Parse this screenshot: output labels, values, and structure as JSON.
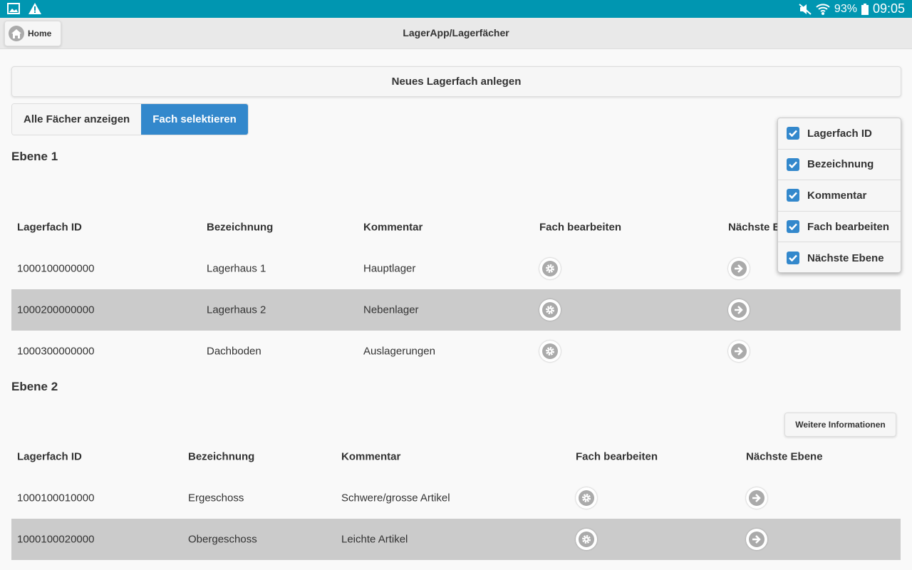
{
  "status_bar": {
    "battery": "93%",
    "time": "09:05",
    "icons": [
      "image-icon",
      "warning-icon",
      "mute-icon",
      "wifi-icon",
      "battery-icon"
    ]
  },
  "header": {
    "home_label": "Home",
    "title": "LagerApp/Lagerfächer"
  },
  "new_button": "Neues Lagerfach anlegen",
  "segments": [
    {
      "label": "Alle Fächer anzeigen",
      "active": false
    },
    {
      "label": "Fach selektieren",
      "active": true
    }
  ],
  "accent": "#3388cc",
  "sections": [
    {
      "title": "Ebene 1",
      "columns": [
        "Lagerfach ID",
        "Bezeichnung",
        "Kommentar",
        "Fach bearbeiten",
        "Nächste Ebene"
      ],
      "rows": [
        [
          "1000100000000",
          "Lagerhaus 1",
          "Hauptlager"
        ],
        [
          "1000200000000",
          "Lagerhaus 2",
          "Nebenlager"
        ],
        [
          "1000300000000",
          "Dachboden",
          "Auslagerungen"
        ]
      ]
    },
    {
      "title": "Ebene 2",
      "more_button": "Weitere Informationen",
      "columns": [
        "Lagerfach ID",
        "Bezeichnung",
        "Kommentar",
        "Fach bearbeiten",
        "Nächste Ebene"
      ],
      "rows": [
        [
          "1000100010000",
          "Ergeschoss",
          "Schwere/grosse Artikel"
        ],
        [
          "1000100020000",
          "Obergeschoss",
          "Leichte Artikel"
        ]
      ]
    }
  ],
  "column_popup": {
    "items": [
      {
        "label": "Lagerfach ID",
        "checked": true
      },
      {
        "label": "Bezeichnung",
        "checked": true
      },
      {
        "label": "Kommentar",
        "checked": true
      },
      {
        "label": "Fach bearbeiten",
        "checked": true
      },
      {
        "label": "Nächste Ebene",
        "checked": true
      }
    ]
  }
}
